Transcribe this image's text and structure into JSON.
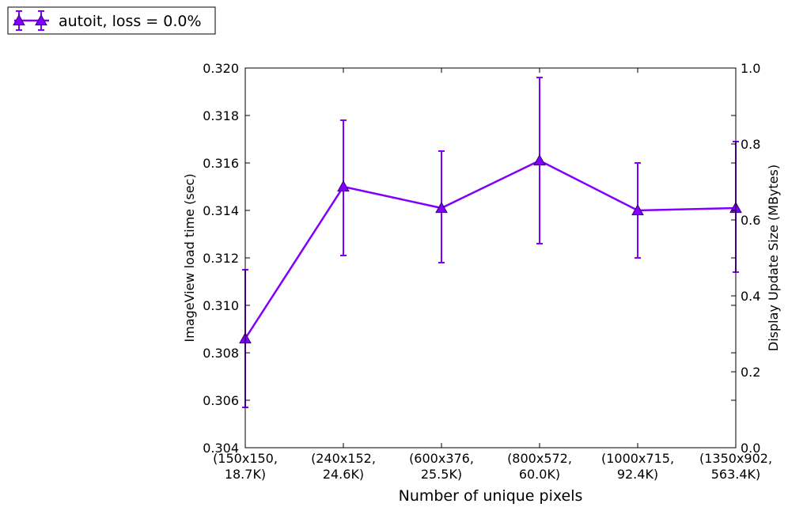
{
  "chart_data": {
    "type": "line",
    "title": "",
    "xlabel": "Number of unique pixels",
    "ylabel": "ImageView load time (sec)",
    "y2label": "Display Update Size (MBytes)",
    "categories": [
      [
        "(150x150,",
        "18.7K)"
      ],
      [
        "(240x152,",
        "24.6K)"
      ],
      [
        "(600x376,",
        "25.5K)"
      ],
      [
        "(800x572,",
        "60.0K)"
      ],
      [
        "(1000x715,",
        "92.4K)"
      ],
      [
        "(1350x902,",
        "563.4K)"
      ]
    ],
    "ylim": [
      0.304,
      0.32
    ],
    "yticks": [
      "0.304",
      "0.306",
      "0.308",
      "0.310",
      "0.312",
      "0.314",
      "0.316",
      "0.318",
      "0.320"
    ],
    "y2lim": [
      0.0,
      1.0
    ],
    "y2ticks": [
      "0.0",
      "0.2",
      "0.4",
      "0.6",
      "0.8",
      "1.0"
    ],
    "grid": false,
    "legend_position": "top-left outside",
    "series": [
      {
        "name": "autoit, loss = 0.0%",
        "color": "#7f00ff",
        "marker": "triangle-up",
        "values": [
          0.3086,
          0.315,
          0.3141,
          0.3161,
          0.314,
          0.3141
        ],
        "err_low": [
          0.3057,
          0.3121,
          0.3118,
          0.3126,
          0.312,
          0.3114
        ],
        "err_high": [
          0.3115,
          0.3178,
          0.3165,
          0.3196,
          0.316,
          0.3169
        ]
      }
    ]
  }
}
